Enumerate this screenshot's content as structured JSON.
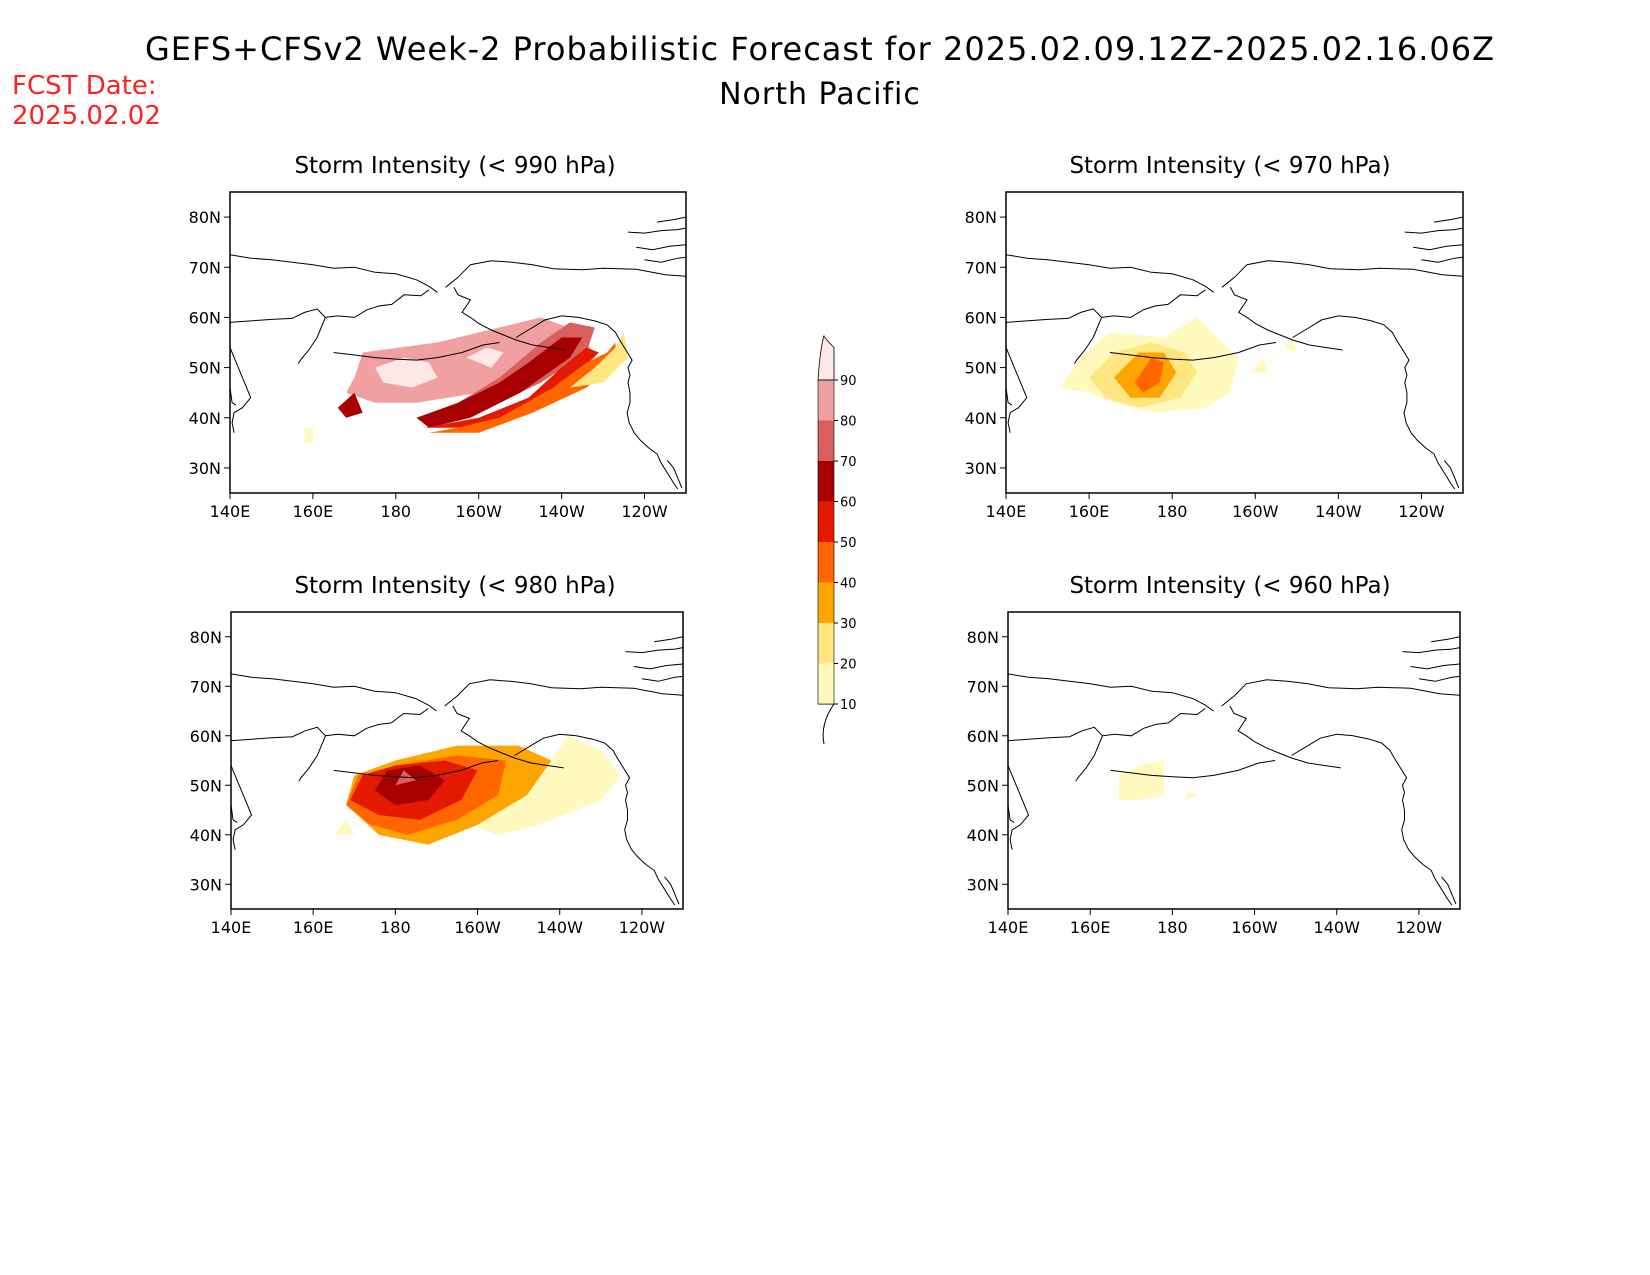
{
  "header": {
    "title": "GEFS+CFSv2 Week-2 Probabilistic Forecast for 2025.02.09.12Z-2025.02.16.06Z",
    "subtitle": "North Pacific",
    "fcst_label": "FCST Date:",
    "fcst_date": "2025.02.02",
    "fcst_color": "#ff2020"
  },
  "legend": {
    "levels": [
      "10",
      "20",
      "30",
      "40",
      "50",
      "60",
      "70",
      "80",
      "90"
    ],
    "colors": [
      "#fff9bd",
      "#ffe680",
      "#ffa500",
      "#ff6600",
      "#e41a00",
      "#a80000",
      "#d86060",
      "#f0a0a0",
      "#fde8e8"
    ]
  },
  "panels": [
    {
      "id": "p990",
      "title": "Storm Intensity (< 990 hPa)",
      "lat_ticks": [
        "80N",
        "70N",
        "60N",
        "50N",
        "40N",
        "30N"
      ],
      "lon_ticks": [
        "140E",
        "160E",
        "180",
        "160W",
        "140W",
        "120W"
      ],
      "regions": [
        {
          "level": "80",
          "lonlat": [
            [
              170,
              48
            ],
            [
              172,
              53
            ],
            [
              190,
              55
            ],
            [
              200,
              57
            ],
            [
              215,
              60
            ],
            [
              225,
              57
            ],
            [
              228,
              52
            ],
            [
              215,
              48
            ],
            [
              200,
              45
            ],
            [
              185,
              43
            ],
            [
              175,
              43
            ],
            [
              168,
              45
            ]
          ]
        },
        {
          "level": "90",
          "lonlat": [
            [
              175,
              50
            ],
            [
              182,
              52
            ],
            [
              188,
              51
            ],
            [
              190,
              48
            ],
            [
              184,
              46
            ],
            [
              177,
              47
            ]
          ]
        },
        {
          "level": "90",
          "lonlat": [
            [
              197,
              52
            ],
            [
              202,
              54
            ],
            [
              206,
              53
            ],
            [
              203,
              50
            ]
          ]
        },
        {
          "level": "70",
          "lonlat": [
            [
              195,
              43
            ],
            [
              205,
              48
            ],
            [
              215,
              55
            ],
            [
              222,
              59
            ],
            [
              228,
              58
            ],
            [
              226,
              53
            ],
            [
              215,
              47
            ],
            [
              200,
              41
            ],
            [
              190,
              39
            ]
          ]
        },
        {
          "level": "60",
          "lonlat": [
            [
              185,
              40
            ],
            [
              195,
              43
            ],
            [
              205,
              47
            ],
            [
              212,
              51
            ],
            [
              220,
              56
            ],
            [
              225,
              56
            ],
            [
              222,
              52
            ],
            [
              210,
              45
            ],
            [
              198,
              40
            ],
            [
              188,
              38
            ]
          ]
        },
        {
          "level": "50",
          "lonlat": [
            [
              187,
              38
            ],
            [
              200,
              40
            ],
            [
              212,
              44
            ],
            [
              220,
              50
            ],
            [
              226,
              54
            ],
            [
              229,
              53
            ],
            [
              224,
              49
            ],
            [
              214,
              43
            ],
            [
              200,
              38
            ]
          ]
        },
        {
          "level": "40",
          "lonlat": [
            [
              188,
              37
            ],
            [
              195,
              38
            ],
            [
              205,
              40
            ],
            [
              218,
              46
            ],
            [
              226,
              51
            ],
            [
              231,
              53
            ],
            [
              233,
              55
            ],
            [
              233,
              51
            ],
            [
              226,
              46
            ],
            [
              213,
              41
            ],
            [
              200,
              37
            ]
          ]
        },
        {
          "level": "20",
          "lonlat": [
            [
              222,
              46
            ],
            [
              228,
              50
            ],
            [
              233,
              54
            ],
            [
              235,
              57
            ],
            [
              236,
              52
            ],
            [
              230,
              47
            ]
          ]
        },
        {
          "level": "10",
          "lonlat": [
            [
              158,
              35
            ],
            [
              160,
              35
            ],
            [
              160,
              38
            ],
            [
              158,
              38
            ]
          ]
        },
        {
          "level": "60",
          "lonlat": [
            [
              166,
              42
            ],
            [
              170,
              45
            ],
            [
              172,
              41
            ],
            [
              168,
              40
            ]
          ]
        }
      ]
    },
    {
      "id": "p970",
      "title": "Storm Intensity (< 970 hPa)",
      "lat_ticks": [
        "80N",
        "70N",
        "60N",
        "50N",
        "40N",
        "30N"
      ],
      "lon_ticks": [
        "140E",
        "160E",
        "180",
        "160W",
        "140W",
        "120W"
      ],
      "regions": [
        {
          "level": "10",
          "lonlat": [
            [
              153,
              46
            ],
            [
              158,
              52
            ],
            [
              165,
              57
            ],
            [
              178,
              56
            ],
            [
              186,
              60
            ],
            [
              192,
              55
            ],
            [
              196,
              52
            ],
            [
              194,
              45
            ],
            [
              188,
              42
            ],
            [
              176,
              41
            ],
            [
              166,
              43
            ],
            [
              160,
              45
            ]
          ]
        },
        {
          "level": "20",
          "lonlat": [
            [
              160,
              48
            ],
            [
              166,
              53
            ],
            [
              175,
              55
            ],
            [
              183,
              53
            ],
            [
              186,
              49
            ],
            [
              182,
              44
            ],
            [
              172,
              42
            ],
            [
              164,
              44
            ]
          ]
        },
        {
          "level": "30",
          "lonlat": [
            [
              166,
              48
            ],
            [
              172,
              53
            ],
            [
              178,
              53
            ],
            [
              181,
              49
            ],
            [
              177,
              44
            ],
            [
              170,
              44
            ]
          ]
        },
        {
          "level": "40",
          "lonlat": [
            [
              171,
              47
            ],
            [
              175,
              52
            ],
            [
              178,
              51
            ],
            [
              177,
              47
            ],
            [
              173,
              45
            ]
          ]
        },
        {
          "level": "10",
          "lonlat": [
            [
              199,
              49
            ],
            [
              202,
              52
            ],
            [
              203,
              49
            ]
          ]
        },
        {
          "level": "10",
          "lonlat": [
            [
              207,
              54
            ],
            [
              209,
              56
            ],
            [
              210,
              53
            ]
          ]
        }
      ]
    },
    {
      "id": "p980",
      "title": "Storm Intensity (< 980 hPa)",
      "lat_ticks": [
        "80N",
        "70N",
        "60N",
        "50N",
        "40N",
        "30N"
      ],
      "lon_ticks": [
        "140E",
        "160E",
        "180",
        "160W",
        "140W",
        "120W"
      ],
      "regions": [
        {
          "level": "10",
          "lonlat": [
            [
              198,
              42
            ],
            [
              210,
              48
            ],
            [
              218,
              55
            ],
            [
              222,
              60
            ],
            [
              230,
              57
            ],
            [
              235,
              52
            ],
            [
              230,
              47
            ],
            [
              215,
              42
            ],
            [
              205,
              40
            ]
          ]
        },
        {
          "level": "30",
          "lonlat": [
            [
              168,
              46
            ],
            [
              170,
              52
            ],
            [
              180,
              55
            ],
            [
              195,
              58
            ],
            [
              210,
              58
            ],
            [
              218,
              55
            ],
            [
              212,
              48
            ],
            [
              200,
              42
            ],
            [
              188,
              38
            ],
            [
              176,
              40
            ]
          ]
        },
        {
          "level": "40",
          "lonlat": [
            [
              168,
              46
            ],
            [
              171,
              52
            ],
            [
              180,
              54
            ],
            [
              195,
              56
            ],
            [
              207,
              55
            ],
            [
              205,
              48
            ],
            [
              195,
              43
            ],
            [
              183,
              40
            ],
            [
              174,
              42
            ]
          ]
        },
        {
          "level": "50",
          "lonlat": [
            [
              169,
              47
            ],
            [
              172,
              52
            ],
            [
              180,
              54
            ],
            [
              192,
              55
            ],
            [
              200,
              53
            ],
            [
              196,
              47
            ],
            [
              186,
              43
            ],
            [
              176,
              44
            ]
          ]
        },
        {
          "level": "60",
          "lonlat": [
            [
              175,
              49
            ],
            [
              178,
              53
            ],
            [
              186,
              54
            ],
            [
              192,
              51
            ],
            [
              188,
              47
            ],
            [
              180,
              46
            ]
          ]
        },
        {
          "level": "70",
          "lonlat": [
            [
              180,
              50
            ],
            [
              182,
              53
            ],
            [
              185,
              51
            ]
          ]
        },
        {
          "level": "10",
          "lonlat": [
            [
              165,
              40
            ],
            [
              168,
              43
            ],
            [
              170,
              40
            ]
          ]
        }
      ]
    },
    {
      "id": "p960",
      "title": "Storm Intensity (< 960 hPa)",
      "lat_ticks": [
        "80N",
        "70N",
        "60N",
        "50N",
        "40N",
        "30N"
      ],
      "lon_ticks": [
        "140E",
        "160E",
        "180",
        "160W",
        "140W",
        "120W"
      ],
      "regions": [
        {
          "level": "10",
          "lonlat": [
            [
              167,
              47
            ],
            [
              167,
              52
            ],
            [
              172,
              54
            ],
            [
              178,
              55
            ],
            [
              178,
              48
            ],
            [
              172,
              47
            ]
          ]
        },
        {
          "level": "10",
          "lonlat": [
            [
              183,
              47
            ],
            [
              184,
              49
            ],
            [
              186,
              48
            ]
          ]
        }
      ]
    }
  ]
}
